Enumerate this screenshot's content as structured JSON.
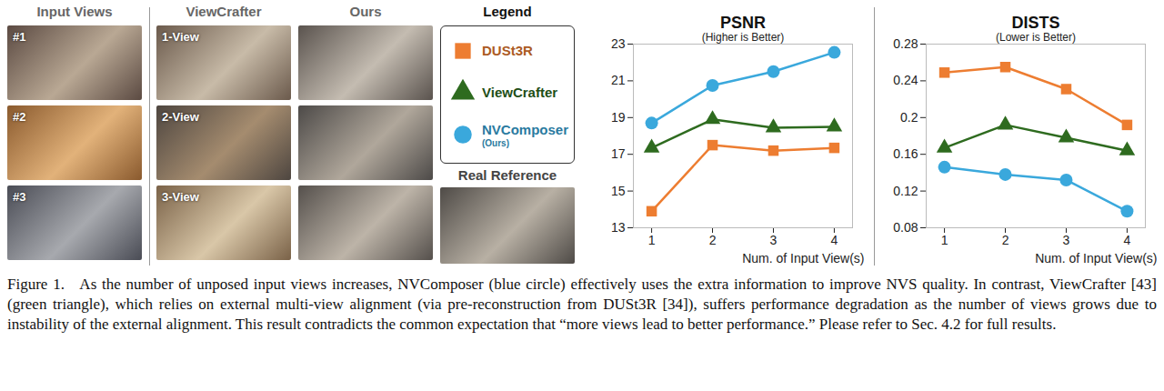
{
  "chart_data": [
    {
      "type": "line",
      "title": "PSNR",
      "subtitle": "(Higher is Better)",
      "x_label": "Num. of Input View(s)",
      "x": [
        1,
        2,
        3,
        4
      ],
      "xlim": [
        0.7,
        4.3
      ],
      "xticks": [
        1,
        2,
        3,
        4
      ],
      "ylim": [
        13,
        23
      ],
      "yticks": [
        13,
        15,
        17,
        19,
        21,
        23
      ],
      "grid": false,
      "series": [
        {
          "name": "DUSt3R",
          "color": "#ED7D31",
          "marker": "square",
          "values": [
            13.9,
            17.5,
            17.2,
            17.35
          ]
        },
        {
          "name": "ViewCrafter",
          "color": "#2E6B1F",
          "marker": "triangle",
          "values": [
            17.35,
            18.9,
            18.45,
            18.5
          ]
        },
        {
          "name": "NVComposer (Ours)",
          "color": "#3AA8DC",
          "marker": "circle",
          "values": [
            18.7,
            20.75,
            21.5,
            22.55
          ]
        }
      ]
    },
    {
      "type": "line",
      "title": "DISTS",
      "subtitle": "(Lower is Better)",
      "x_label": "Num. of Input View(s)",
      "x": [
        1,
        2,
        3,
        4
      ],
      "xlim": [
        0.7,
        4.3
      ],
      "xticks": [
        1,
        2,
        3,
        4
      ],
      "ylim": [
        0.08,
        0.28
      ],
      "yticks": [
        0.08,
        0.12,
        0.16,
        0.2,
        0.24,
        0.28
      ],
      "grid": false,
      "series": [
        {
          "name": "DUSt3R",
          "color": "#ED7D31",
          "marker": "square",
          "values": [
            0.249,
            0.255,
            0.231,
            0.192
          ]
        },
        {
          "name": "ViewCrafter",
          "color": "#2E6B1F",
          "marker": "triangle",
          "values": [
            0.167,
            0.192,
            0.178,
            0.164
          ]
        },
        {
          "name": "NVComposer (Ours)",
          "color": "#3AA8DC",
          "marker": "circle",
          "values": [
            0.146,
            0.138,
            0.132,
            0.098
          ]
        }
      ]
    }
  ],
  "image_panel": {
    "columns": [
      {
        "title": "Input Views",
        "labels": [
          "#1",
          "#2",
          "#3"
        ]
      },
      {
        "title": "ViewCrafter",
        "labels": [
          "1-View",
          "2-View",
          "3-View"
        ]
      },
      {
        "title": "Ours",
        "labels": []
      }
    ],
    "legend_title": "Legend",
    "reference_label": "Real Reference"
  },
  "caption": "Figure 1.   As the number of unposed input views increases, NVComposer (blue circle) effectively uses the extra information to improve NVS quality. In contrast, ViewCrafter [43] (green triangle), which relies on external multi-view alignment (via pre-reconstruction from DUSt3R [34]), suffers performance degradation as the number of views grows due to instability of the external alignment. This result contradicts the common expectation that “more views lead to better performance.” Please refer to Sec. 4.2 for full results."
}
